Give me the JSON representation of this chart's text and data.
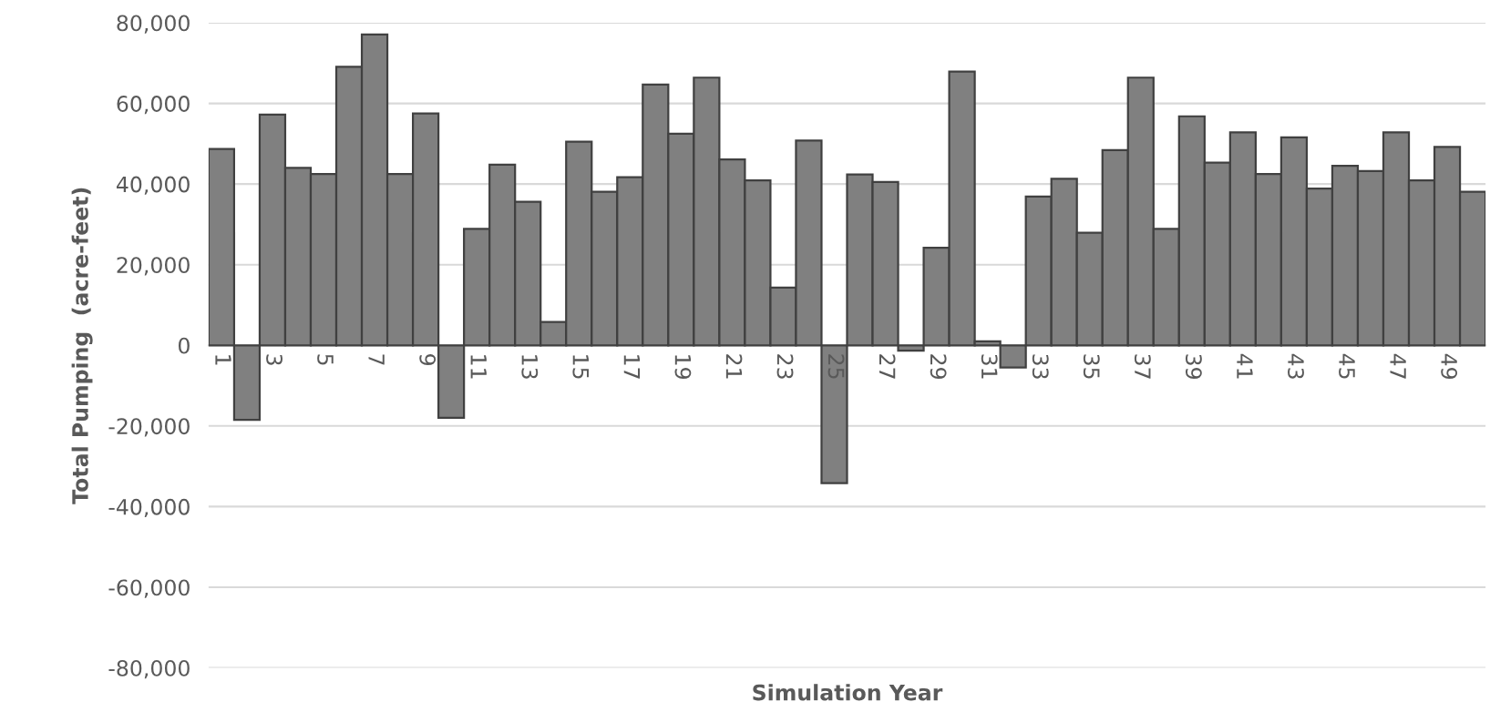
{
  "chart_data": {
    "type": "bar",
    "xlabel": "Simulation Year",
    "ylabel": "Total Pumping  (acre-feet)",
    "categories": [
      "1",
      null,
      "3",
      null,
      "5",
      null,
      "7",
      null,
      "9",
      null,
      "11",
      null,
      "13",
      null,
      "15",
      null,
      "17",
      null,
      "19",
      null,
      "21",
      null,
      "23",
      null,
      "25",
      null,
      "27",
      null,
      "29",
      null,
      "31",
      null,
      "33",
      null,
      "35",
      null,
      "37",
      null,
      "39",
      null,
      "41",
      null,
      "43",
      null,
      "45",
      null,
      "47",
      null,
      "49",
      null
    ],
    "values": [
      48700,
      -18500,
      57200,
      44000,
      42500,
      69100,
      77100,
      42500,
      57500,
      -18000,
      28900,
      44800,
      35600,
      5800,
      50500,
      38100,
      41700,
      64700,
      52500,
      66400,
      46100,
      40900,
      14300,
      50800,
      -34200,
      42400,
      40500,
      -1300,
      24200,
      67900,
      1000,
      -5500,
      36900,
      41300,
      27900,
      48400,
      66400,
      28900,
      56800,
      45300,
      52800,
      42500,
      51600,
      38900,
      44500,
      43200,
      52800,
      40900,
      49200,
      38100
    ],
    "color": "#808080",
    "ylim": [
      -80000,
      80000
    ],
    "yticks": [
      {
        "value": -80000,
        "label": "-80,000"
      },
      {
        "value": -60000,
        "label": "-60,000"
      },
      {
        "value": -40000,
        "label": "-40,000"
      },
      {
        "value": -20000,
        "label": "-20,000"
      },
      0,
      {
        "value": 20000,
        "label": "20,000"
      },
      {
        "value": 40000,
        "label": "40,000"
      },
      {
        "value": 60000,
        "label": "60,000"
      },
      {
        "value": 80000,
        "label": "80,000"
      }
    ],
    "grid": "y",
    "legend": false
  }
}
